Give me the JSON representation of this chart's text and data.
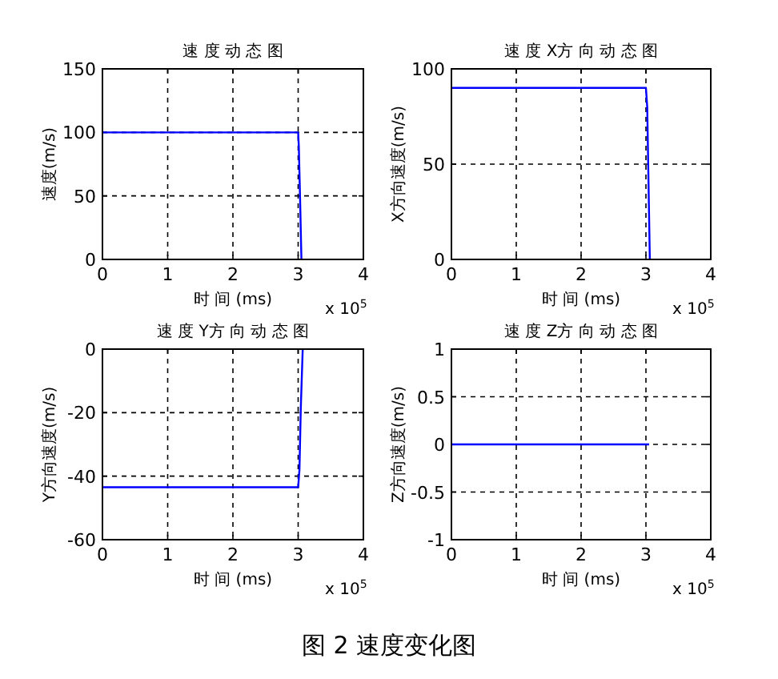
{
  "chart_data": [
    {
      "type": "line",
      "title": "速 度 动 态 图",
      "xlabel": "时 间 (ms)",
      "ylabel": "速度(m/s)",
      "x": [
        0,
        3,
        3.01,
        3.03,
        3.05
      ],
      "series": [
        {
          "color": "#0000ff",
          "values": [
            100,
            100,
            89,
            47,
            0
          ]
        }
      ],
      "xlim": [
        0,
        4
      ],
      "ylim": [
        0,
        150
      ],
      "xticks": [
        0,
        1,
        2,
        3,
        4
      ],
      "yticks": [
        0,
        50,
        100,
        150
      ],
      "grid": true,
      "annotations": [
        "x 10$^{5}$"
      ]
    },
    {
      "type": "line",
      "title": "速 度 X方 向 动 态 图",
      "xlabel": "时 间 (ms)",
      "ylabel": "X方向速度(m/s)",
      "x": [
        0,
        3,
        3.02,
        3.04,
        3.06
      ],
      "series": [
        {
          "color": "#0000ff",
          "values": [
            90,
            90,
            80,
            40,
            0
          ]
        }
      ],
      "xlim": [
        0,
        4
      ],
      "ylim": [
        0,
        100
      ],
      "xticks": [
        0,
        1,
        2,
        3,
        4
      ],
      "yticks": [
        0,
        50,
        100
      ],
      "grid": true,
      "annotations": [
        "x 10$^{5}$"
      ]
    },
    {
      "type": "line",
      "title": "速 度 Y方 向 动 态 图",
      "xlabel": "时 间 (ms)",
      "ylabel": "Y方向速度(m/s)",
      "x": [
        0,
        3,
        3.02,
        3.04,
        3.07
      ],
      "series": [
        {
          "color": "#0000ff",
          "values": [
            -43.5,
            -43.5,
            -38,
            -19,
            0
          ]
        }
      ],
      "xlim": [
        0,
        4
      ],
      "ylim": [
        -60,
        0
      ],
      "xticks": [
        0,
        1,
        2,
        3,
        4
      ],
      "yticks": [
        -60,
        -40,
        -20,
        0
      ],
      "grid": true,
      "annotations": [
        "x 10$^{5}$"
      ]
    },
    {
      "type": "line",
      "title": "速 度 Z方 向 动 态 图",
      "xlabel": "时 间 (ms)",
      "ylabel": "Z方向速度(m/s)",
      "x": [
        0,
        3.05
      ],
      "series": [
        {
          "color": "#0000ff",
          "values": [
            0,
            0
          ]
        }
      ],
      "xlim": [
        0,
        4
      ],
      "ylim": [
        -1,
        1
      ],
      "xticks": [
        0,
        1,
        2,
        3,
        4
      ],
      "yticks": [
        -1,
        -0.5,
        0,
        0.5,
        1
      ],
      "grid": true,
      "annotations": [
        "x 10$^{5}$",
        "图 2  速度变化图"
      ]
    }
  ]
}
